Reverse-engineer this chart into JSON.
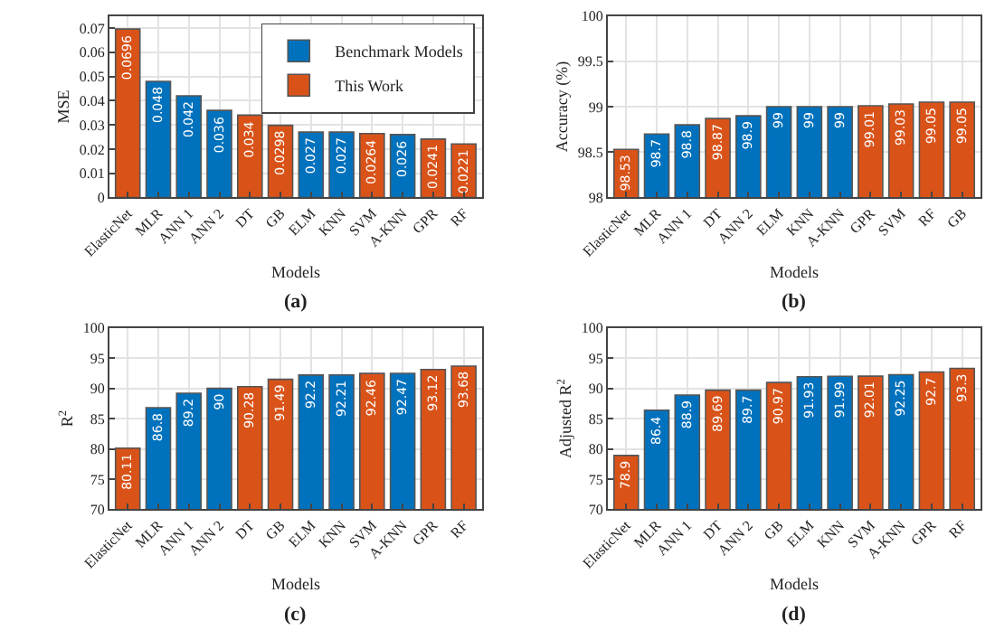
{
  "chart_data": [
    {
      "type": "bar",
      "xlabel": "Models",
      "ylabel": "MSE",
      "annotations": [
        "(a)"
      ],
      "categories": [
        "ElasticNet",
        "MLR",
        "ANN 1",
        "ANN 2",
        "DT",
        "GB",
        "ELM",
        "KNN",
        "SVM",
        "A-KNN",
        "GPR",
        "RF"
      ],
      "series": [
        {
          "name": "Benchmark Models",
          "color": "#0072bd",
          "values": [
            null,
            0.048,
            0.042,
            0.036,
            null,
            null,
            0.027,
            0.027,
            null,
            0.026,
            null,
            null
          ]
        },
        {
          "name": "This Work",
          "color": "#d95319",
          "values": [
            0.0696,
            null,
            null,
            null,
            0.034,
            0.0298,
            null,
            null,
            0.0264,
            null,
            0.0241,
            0.0221
          ]
        }
      ],
      "ylim": [
        0,
        0.075
      ],
      "yticks": [
        0,
        0.01,
        0.02,
        0.03,
        0.04,
        0.05,
        0.06,
        0.07
      ],
      "grid": true,
      "legend": "top right",
      "data_labels": true
    },
    {
      "type": "bar",
      "xlabel": "Models",
      "ylabel": "Accuracy (%)",
      "annotations": [
        "(b)"
      ],
      "categories": [
        "ElasticNet",
        "MLR",
        "ANN 1",
        "DT",
        "ANN 2",
        "ELM",
        "KNN",
        "A-KNN",
        "GPR",
        "SVM",
        "RF",
        "GB"
      ],
      "values": [
        98.53,
        98.7,
        98.8,
        98.87,
        98.9,
        99,
        99,
        99,
        99.01,
        99.03,
        99.05,
        99.05
      ],
      "colors": [
        "#d95319",
        "#0072bd",
        "#0072bd",
        "#d95319",
        "#0072bd",
        "#0072bd",
        "#0072bd",
        "#0072bd",
        "#d95319",
        "#d95319",
        "#d95319",
        "#d95319"
      ],
      "ylim": [
        98,
        100
      ],
      "yticks": [
        98,
        98.5,
        99,
        99.5,
        100
      ],
      "grid": true,
      "data_labels": true
    },
    {
      "type": "bar",
      "xlabel": "Models",
      "ylabel": "R$^{2}$",
      "annotations": [
        "(c)"
      ],
      "categories": [
        "ElasticNet",
        "MLR",
        "ANN 1",
        "ANN 2",
        "DT",
        "GB",
        "ELM",
        "KNN",
        "SVM",
        "A-KNN",
        "GPR",
        "RF"
      ],
      "values": [
        80.11,
        86.8,
        89.2,
        90,
        90.28,
        91.49,
        92.2,
        92.21,
        92.46,
        92.47,
        93.12,
        93.68
      ],
      "colors": [
        "#d95319",
        "#0072bd",
        "#0072bd",
        "#0072bd",
        "#d95319",
        "#d95319",
        "#0072bd",
        "#0072bd",
        "#d95319",
        "#0072bd",
        "#d95319",
        "#d95319"
      ],
      "ylim": [
        70,
        100
      ],
      "yticks": [
        70,
        75,
        80,
        85,
        90,
        95,
        100
      ],
      "grid": true,
      "data_labels": true
    },
    {
      "type": "bar",
      "xlabel": "Models",
      "ylabel": "Adjusted R$^{2}$",
      "annotations": [
        "(d)"
      ],
      "categories": [
        "ElasticNet",
        "MLR",
        "ANN 1",
        "DT",
        "ANN 2",
        "GB",
        "ELM",
        "KNN",
        "SVM",
        "A-KNN",
        "GPR",
        "RF"
      ],
      "values": [
        78.9,
        86.4,
        88.9,
        89.69,
        89.7,
        90.97,
        91.93,
        91.99,
        92.01,
        92.25,
        92.7,
        93.3
      ],
      "colors": [
        "#d95319",
        "#0072bd",
        "#0072bd",
        "#d95319",
        "#0072bd",
        "#d95319",
        "#0072bd",
        "#0072bd",
        "#d95319",
        "#0072bd",
        "#d95319",
        "#d95319"
      ],
      "ylim": [
        70,
        100
      ],
      "yticks": [
        70,
        75,
        80,
        85,
        90,
        95,
        100
      ],
      "grid": true,
      "data_labels": true
    }
  ]
}
